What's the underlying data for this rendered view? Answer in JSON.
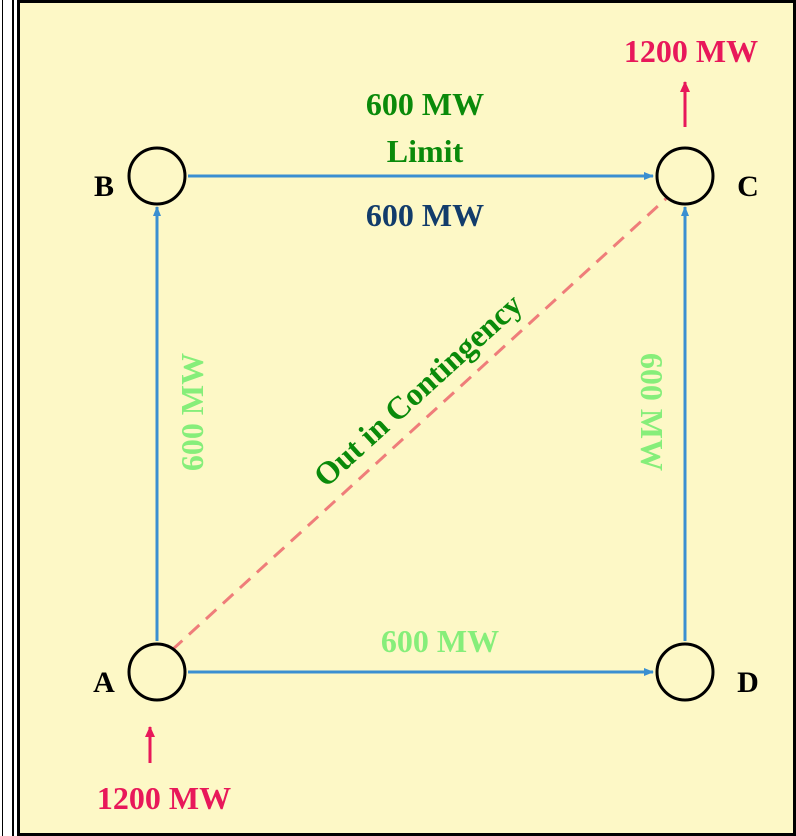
{
  "colors": {
    "background": "#fdf8c6",
    "line": "#3a8fd1",
    "contingency_line": "#ef7d7a",
    "injection": "#e8185a",
    "flow_label": "#86ee7a",
    "limit_label": "#0a8a0a",
    "flow_dark": "#123c6b",
    "node_outline": "#000000"
  },
  "nodes": {
    "A": {
      "label": "A"
    },
    "B": {
      "label": "B"
    },
    "C": {
      "label": "C"
    },
    "D": {
      "label": "D"
    }
  },
  "lines": {
    "ab": {
      "flow": "600 MW"
    },
    "ad": {
      "flow": "600 MW"
    },
    "dc": {
      "flow": "600 MW"
    },
    "bc": {
      "flow": "600 MW",
      "limit_value": "600 MW",
      "limit_word": "Limit"
    },
    "ac": {
      "status": "Out in Contingency"
    }
  },
  "injections": {
    "in_a": "1200 MW",
    "out_c": "1200 MW"
  }
}
